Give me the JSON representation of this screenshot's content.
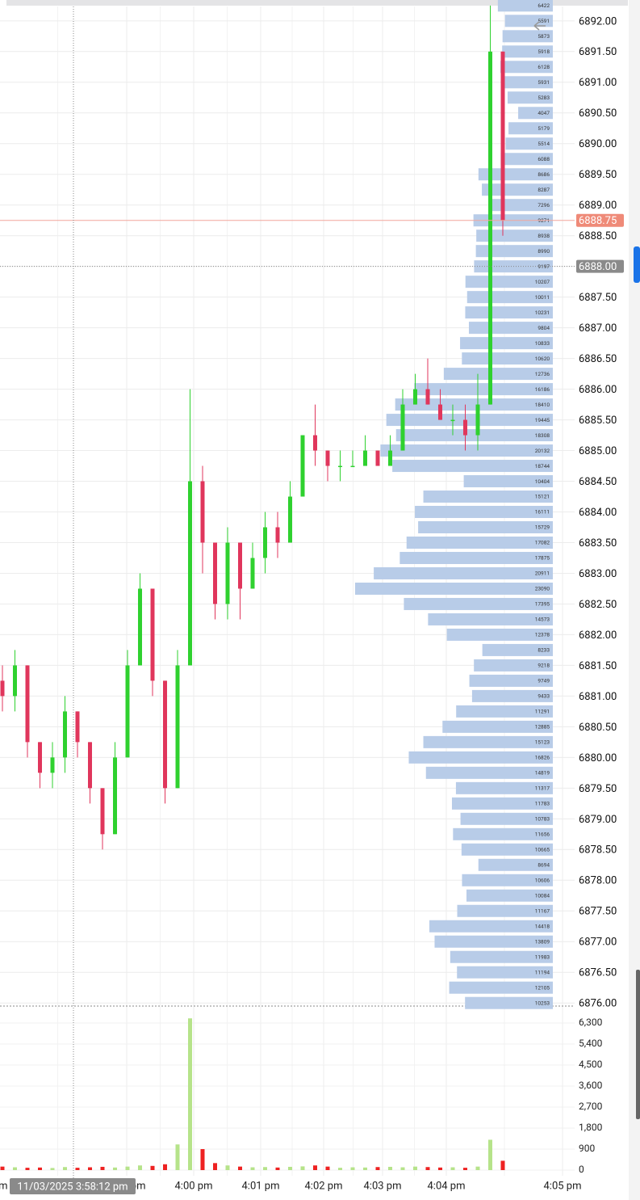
{
  "chart_data": {
    "type": "candlestick",
    "ylim": [
      6875.95,
      6892.34
    ],
    "yticks": [
      {
        "value": 6876.0,
        "label": "6876.00"
      },
      {
        "value": 6876.5,
        "label": "6876.50"
      },
      {
        "value": 6877.0,
        "label": "6877.00"
      },
      {
        "value": 6877.5,
        "label": "6877.50"
      },
      {
        "value": 6878.0,
        "label": "6878.00"
      },
      {
        "value": 6878.5,
        "label": "6878.50"
      },
      {
        "value": 6879.0,
        "label": "6879.00"
      },
      {
        "value": 6879.5,
        "label": "6879.50"
      },
      {
        "value": 6880.0,
        "label": "6880.00"
      },
      {
        "value": 6880.5,
        "label": "6880.50"
      },
      {
        "value": 6881.0,
        "label": "6881.00"
      },
      {
        "value": 6881.5,
        "label": "6881.50"
      },
      {
        "value": 6882.0,
        "label": "6882.00"
      },
      {
        "value": 6882.5,
        "label": "6882.50"
      },
      {
        "value": 6883.0,
        "label": "6883.00"
      },
      {
        "value": 6883.5,
        "label": "6883.50"
      },
      {
        "value": 6884.0,
        "label": "6884.00"
      },
      {
        "value": 6884.5,
        "label": "6884.50"
      },
      {
        "value": 6885.0,
        "label": "6885.00"
      },
      {
        "value": 6885.5,
        "label": "6885.50"
      },
      {
        "value": 6886.0,
        "label": "6886.00"
      },
      {
        "value": 6886.5,
        "label": "6886.50"
      },
      {
        "value": 6887.0,
        "label": "6887.00"
      },
      {
        "value": 6887.5,
        "label": "6887.50"
      },
      {
        "value": 6888.0,
        "label": "6888.00"
      },
      {
        "value": 6888.5,
        "label": "6888.50"
      },
      {
        "value": 6889.0,
        "label": "6889.00"
      },
      {
        "value": 6889.5,
        "label": "6889.50"
      },
      {
        "value": 6890.0,
        "label": "6890.00"
      },
      {
        "value": 6890.5,
        "label": "6890.50"
      },
      {
        "value": 6891.0,
        "label": "6891.00"
      },
      {
        "value": 6891.5,
        "label": "6891.50"
      },
      {
        "value": 6892.0,
        "label": "6892.00"
      }
    ],
    "x_labels": [
      "3:58 pm",
      "3:59 pm",
      "4:00 pm",
      "4:01 pm",
      "4:02 pm",
      "4:03 pm",
      "4:04 pm",
      "4:05 pm"
    ],
    "up_color": "#2fd12f",
    "down_color": "#e0365c",
    "candles": {
      "open": [
        6881.25,
        6881.0,
        6881.5,
        6880.25,
        6879.75,
        6880.0,
        6880.75,
        6880.25,
        6879.5,
        6878.75,
        6880.0,
        6881.5,
        6882.75,
        6881.25,
        6879.5,
        6881.5,
        6884.5,
        6883.5,
        6882.5,
        6883.5,
        6882.75,
        6883.25,
        6883.75,
        6883.5,
        6884.25,
        6885.25,
        6885.0,
        6884.75,
        6884.75,
        6884.75,
        6885.0,
        6884.75,
        6885.0,
        6885.75,
        6886.0,
        6885.75,
        6885.5,
        6885.5,
        6885.25,
        6885.75,
        6891.5
      ],
      "high": [
        6881.5,
        6881.75,
        6881.5,
        6880.25,
        6880.25,
        6881.0,
        6880.75,
        6880.25,
        6879.5,
        6880.25,
        6881.75,
        6883.0,
        6882.75,
        6881.25,
        6881.75,
        6886.0,
        6884.75,
        6883.5,
        6883.75,
        6883.5,
        6883.5,
        6884.0,
        6884.0,
        6884.5,
        6885.25,
        6885.75,
        6885.0,
        6885.0,
        6885.0,
        6885.25,
        6885.0,
        6885.25,
        6886.0,
        6886.25,
        6886.5,
        6886.0,
        6885.75,
        6885.75,
        6886.25,
        6892.25,
        6891.5
      ],
      "low": [
        6880.75,
        6880.75,
        6880.0,
        6879.5,
        6879.5,
        6879.75,
        6880.0,
        6879.25,
        6878.5,
        6878.75,
        6880.0,
        6881.5,
        6881.0,
        6879.25,
        6879.5,
        6881.5,
        6883.0,
        6882.25,
        6882.25,
        6882.25,
        6882.75,
        6883.0,
        6883.25,
        6883.5,
        6884.25,
        6884.75,
        6884.5,
        6884.5,
        6884.75,
        6884.75,
        6884.75,
        6884.75,
        6885.0,
        6885.75,
        6885.75,
        6885.5,
        6885.25,
        6885.0,
        6885.0,
        6885.75,
        6888.5
      ],
      "close": [
        6881.0,
        6881.5,
        6880.25,
        6879.75,
        6880.0,
        6880.75,
        6880.25,
        6879.5,
        6878.75,
        6880.0,
        6881.5,
        6882.75,
        6881.25,
        6879.5,
        6881.5,
        6884.5,
        6883.5,
        6882.5,
        6883.5,
        6882.75,
        6883.25,
        6883.75,
        6883.5,
        6884.25,
        6885.25,
        6885.0,
        6884.75,
        6884.75,
        6884.75,
        6885.0,
        6884.75,
        6885.0,
        6885.75,
        6886.0,
        6885.75,
        6885.5,
        6885.5,
        6885.25,
        6885.75,
        6891.5,
        6888.75
      ]
    },
    "volume": {
      "ylim": [
        0,
        6300
      ],
      "yticks": [
        0,
        900,
        {
          "value": 1800,
          "label": "1,800"
        },
        {
          "value": 2700,
          "label": "2,700"
        },
        {
          "value": 3600,
          "label": "3,600"
        },
        {
          "value": 4500,
          "label": "4,500"
        },
        {
          "value": 5400,
          "label": "5,400"
        },
        {
          "value": 6300,
          "label": "6,300"
        }
      ],
      "up_color": "#b6e38a",
      "down_color": "#ee2222",
      "values": [
        150,
        120,
        100,
        110,
        90,
        130,
        100,
        120,
        140,
        110,
        150,
        200,
        180,
        250,
        1100,
        6500,
        900,
        300,
        200,
        150,
        120,
        130,
        110,
        140,
        160,
        200,
        150,
        100,
        120,
        110,
        130,
        140,
        120,
        150,
        130,
        110,
        120,
        100,
        150,
        1300,
        400
      ]
    },
    "profile": {
      "color": "#b8cce8",
      "prices": [
        6892.25,
        6892.0,
        6891.75,
        6891.5,
        6891.25,
        6891.0,
        6890.75,
        6890.5,
        6890.25,
        6890.0,
        6889.75,
        6889.5,
        6889.25,
        6889.0,
        6888.75,
        6888.5,
        6888.25,
        6888.0,
        6887.75,
        6887.5,
        6887.25,
        6887.0,
        6886.75,
        6886.5,
        6886.25,
        6886.0,
        6885.75,
        6885.5,
        6885.25,
        6885.0,
        6884.75,
        6884.5,
        6884.25,
        6884.0,
        6883.75,
        6883.5,
        6883.25,
        6883.0,
        6882.75,
        6882.5,
        6882.25,
        6882.0,
        6881.75,
        6881.5,
        6881.25,
        6881.0,
        6880.75,
        6880.5,
        6880.25,
        6880.0,
        6879.75,
        6879.5,
        6879.25,
        6879.0,
        6878.75,
        6878.5,
        6878.25,
        6878.0,
        6877.75,
        6877.5,
        6877.25,
        6877.0,
        6876.75,
        6876.5,
        6876.25,
        6876.0
      ],
      "values": [
        6422,
        5591,
        5873,
        5918,
        6128,
        5931,
        5283,
        4047,
        5179,
        5514,
        6088,
        8686,
        8287,
        7296,
        9271,
        8938,
        8990,
        9197,
        10207,
        10011,
        10231,
        9804,
        10833,
        10620,
        12736,
        16186,
        18410,
        19445,
        18308,
        20132,
        18744,
        10404,
        15121,
        16111,
        15729,
        17082,
        17875,
        20911,
        23090,
        17395,
        14573,
        12378,
        8233,
        9218,
        9749,
        9433,
        11291,
        12885,
        15123,
        16826,
        14819,
        11317,
        11783,
        10783,
        11656,
        10665,
        8694,
        10606,
        10084,
        11167,
        14418,
        13809,
        11983,
        11194,
        12105,
        10253
      ]
    },
    "last_price": 6888.75,
    "crosshair": {
      "price": {
        "value": 6888.0,
        "label": "6888.00"
      },
      "time": "11/03/2025 3:58:12 pm"
    }
  }
}
